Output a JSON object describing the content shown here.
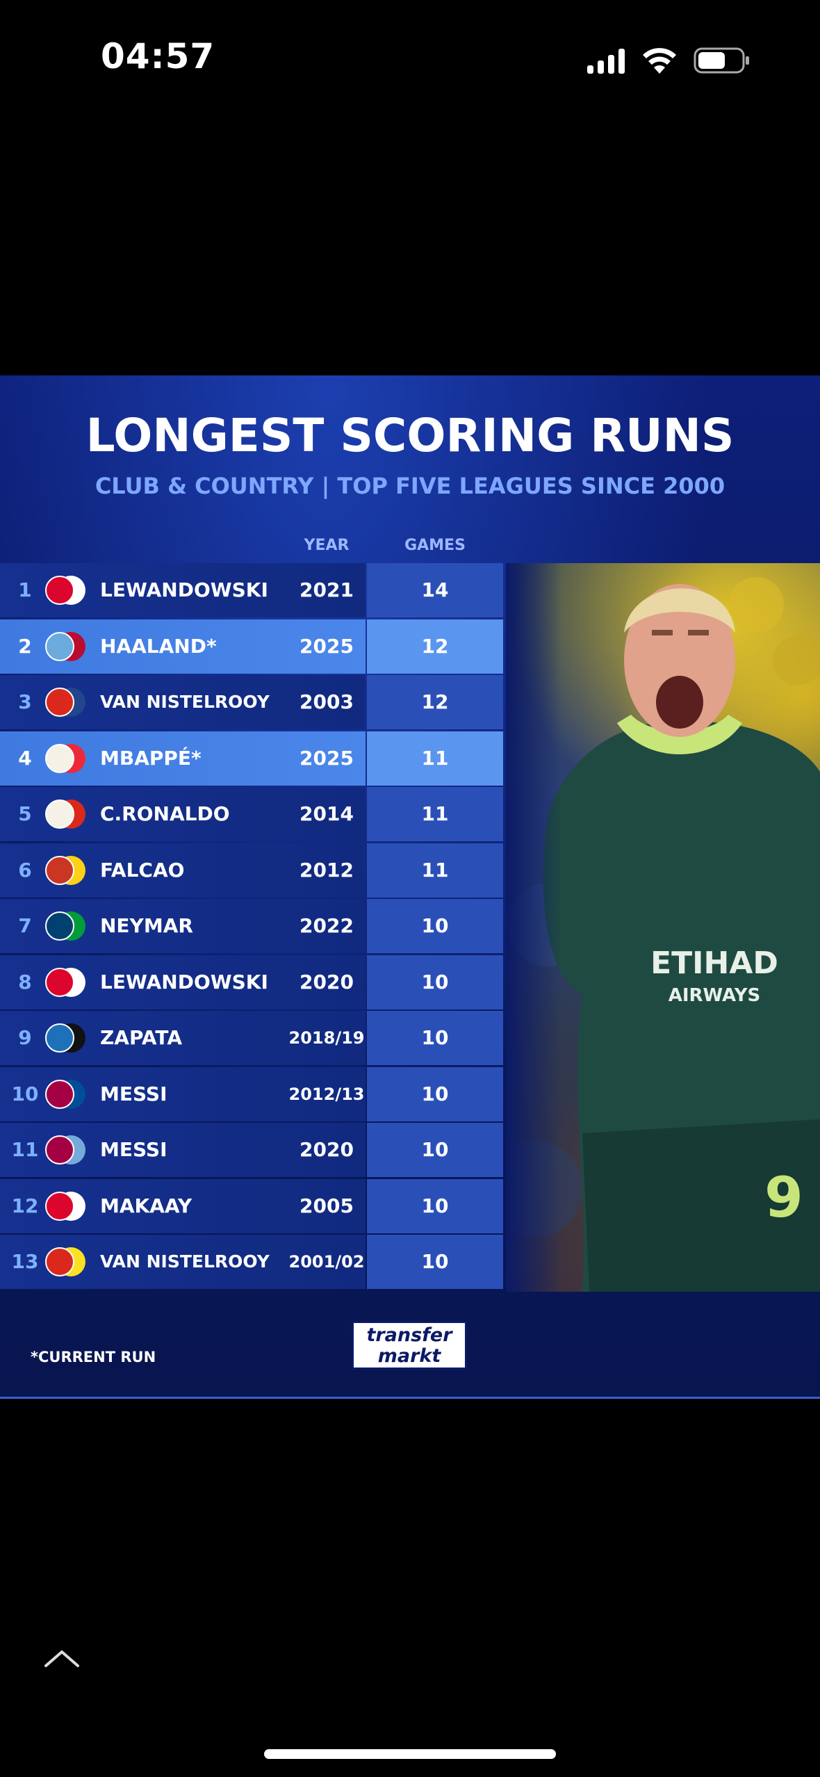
{
  "status_bar": {
    "time": "04:57"
  },
  "infographic": {
    "title": "LONGEST SCORING RUNS",
    "subtitle": "CLUB & COUNTRY | TOP FIVE LEAGUES SINCE 2000",
    "columns": {
      "year": "YEAR",
      "games": "GAMES"
    },
    "rows": [
      {
        "rank": "1",
        "player": "LEWANDOWSKI",
        "year": "2021",
        "games": "14",
        "highlight": false,
        "badge_color": "#dc052d",
        "badge_color2": "#ffffff"
      },
      {
        "rank": "2",
        "player": "HAALAND*",
        "year": "2025",
        "games": "12",
        "highlight": true,
        "badge_color": "#6cabdd",
        "badge_color2": "#ba0c2f"
      },
      {
        "rank": "3",
        "player": "VAN NISTELROOY",
        "year": "2003",
        "games": "12",
        "highlight": false,
        "badge_color": "#da291c",
        "badge_color2": "#21468b"
      },
      {
        "rank": "4",
        "player": "MBAPPÉ*",
        "year": "2025",
        "games": "11",
        "highlight": true,
        "badge_color": "#f5f1e6",
        "badge_color2": "#ed2939"
      },
      {
        "rank": "5",
        "player": "C.RONALDO",
        "year": "2014",
        "games": "11",
        "highlight": false,
        "badge_color": "#f5f1e6",
        "badge_color2": "#da291c"
      },
      {
        "rank": "6",
        "player": "FALCAO",
        "year": "2012",
        "games": "11",
        "highlight": false,
        "badge_color": "#cb3524",
        "badge_color2": "#fcd116"
      },
      {
        "rank": "7",
        "player": "NEYMAR",
        "year": "2022",
        "games": "10",
        "highlight": false,
        "badge_color": "#004170",
        "badge_color2": "#009c3b"
      },
      {
        "rank": "8",
        "player": "LEWANDOWSKI",
        "year": "2020",
        "games": "10",
        "highlight": false,
        "badge_color": "#dc052d",
        "badge_color2": "#ffffff"
      },
      {
        "rank": "9",
        "player": "ZAPATA",
        "year": "2018/19",
        "games": "10",
        "highlight": false,
        "badge_color": "#1e71b8",
        "badge_color2": "#111111"
      },
      {
        "rank": "10",
        "player": "MESSI",
        "year": "2012/13",
        "games": "10",
        "highlight": false,
        "badge_color": "#a50044",
        "badge_color2": "#004d98"
      },
      {
        "rank": "11",
        "player": "MESSI",
        "year": "2020",
        "games": "10",
        "highlight": false,
        "badge_color": "#a50044",
        "badge_color2": "#75aadb"
      },
      {
        "rank": "12",
        "player": "MAKAAY",
        "year": "2005",
        "games": "10",
        "highlight": false,
        "badge_color": "#dc052d",
        "badge_color2": "#ffffff"
      },
      {
        "rank": "13",
        "player": "VAN NISTELROOY",
        "year": "2001/02",
        "games": "10",
        "highlight": false,
        "badge_color": "#da291c",
        "badge_color2": "#fbe122"
      }
    ],
    "footnote": "*CURRENT RUN",
    "logo": {
      "line1": "transfer",
      "line2": "markt"
    },
    "photo": {
      "shirt_text": "ETIHAD",
      "shirt_text2": "AIRWAYS",
      "number": "9"
    }
  },
  "icons": {
    "signal": "signal-bars-icon",
    "wifi": "wifi-icon",
    "battery": "battery-icon",
    "chevron": "chevron-up-icon"
  },
  "colors": {
    "panel_bg": "#0b1a66",
    "row_bg": "#15308f",
    "row_highlight": "#4b86ea",
    "games_bg": "#2a50b8",
    "subtitle": "#7ea7ff"
  }
}
